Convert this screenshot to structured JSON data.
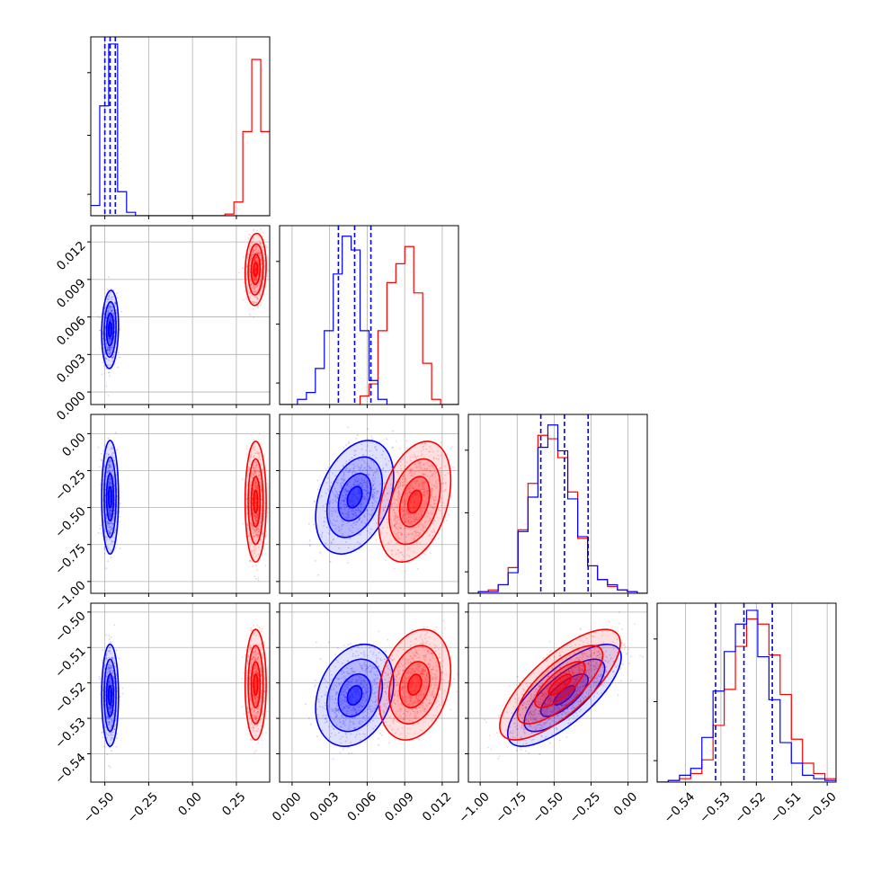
{
  "chart_data": {
    "type": "corner",
    "grid": true,
    "series": [
      {
        "name": "",
        "color": "#0000ff",
        "means": [
          -0.47,
          0.005,
          -0.43,
          -0.5235
        ],
        "sds": [
          0.02,
          0.0013,
          0.16,
          0.006
        ]
      },
      {
        "name": "",
        "color": "#ff0000",
        "means": [
          0.36,
          0.0098,
          -0.46,
          -0.5205
        ],
        "sds": [
          0.025,
          0.0012,
          0.17,
          0.0065
        ]
      }
    ],
    "params": [
      {
        "range": [
          -0.58,
          0.44
        ],
        "ticks": [
          -0.5,
          -0.25,
          0.0,
          0.25
        ],
        "tick_labels": [
          "−0.50",
          "−0.25",
          "0.00",
          "0.25"
        ]
      },
      {
        "range": [
          -0.001,
          0.0133
        ],
        "ticks": [
          0.0,
          0.003,
          0.006,
          0.009,
          0.012
        ],
        "tick_labels": [
          "0.000",
          "0.003",
          "0.006",
          "0.009",
          "0.012"
        ]
      },
      {
        "range": [
          -1.08,
          0.13
        ],
        "ticks": [
          -1.0,
          -0.75,
          -0.5,
          -0.25,
          0.0
        ],
        "tick_labels": [
          "−1.00",
          "−0.75",
          "−0.50",
          "−0.25",
          "0.00"
        ]
      },
      {
        "range": [
          -0.548,
          -0.4975
        ],
        "ticks": [
          -0.54,
          -0.53,
          -0.52,
          -0.51,
          -0.5
        ],
        "tick_labels": [
          "−0.54",
          "−0.53",
          "−0.52",
          "−0.51",
          "−0.50"
        ]
      }
    ],
    "diagonal_histograms": [
      {
        "blue": [
          0.06,
          0.64,
          1.0,
          0.14,
          0.02,
          0,
          0,
          0,
          0,
          0,
          0,
          0,
          0,
          0,
          0,
          0,
          0,
          0,
          0,
          0
        ],
        "red": [
          0,
          0,
          0,
          0,
          0,
          0,
          0,
          0,
          0,
          0,
          0,
          0,
          0,
          0,
          0,
          0.01,
          0.08,
          0.49,
          0.91,
          0.49
        ],
        "quantiles": [
          -0.5,
          -0.47,
          -0.44
        ]
      },
      {
        "blue": [
          0,
          0,
          0.03,
          0.07,
          0.21,
          0.43,
          0.76,
          0.98,
          0.9,
          0.43,
          0.14,
          0.03,
          0,
          0,
          0,
          0,
          0,
          0,
          0,
          0
        ],
        "red": [
          0,
          0,
          0,
          0,
          0,
          0,
          0,
          0,
          0,
          0.05,
          0.12,
          0.43,
          0.71,
          0.82,
          0.92,
          0.65,
          0.24,
          0.03,
          0,
          0
        ],
        "quantiles": [
          0.0037,
          0.005,
          0.0063
        ]
      },
      {
        "blue": [
          0,
          0.01,
          0.01,
          0.05,
          0.12,
          0.36,
          0.56,
          0.85,
          0.98,
          0.83,
          0.55,
          0.33,
          0.16,
          0.08,
          0.05,
          0.02,
          0.01,
          0
        ],
        "red": [
          0,
          0.01,
          0.02,
          0.05,
          0.15,
          0.37,
          0.64,
          0.92,
          0.9,
          0.79,
          0.59,
          0.32,
          0.16,
          0.08,
          0.04,
          0.02,
          0.01,
          0
        ],
        "quantiles": [
          -0.59,
          -0.43,
          -0.27
        ]
      },
      {
        "blue": [
          0,
          0.01,
          0.04,
          0.08,
          0.26,
          0.53,
          0.76,
          0.92,
          1.0,
          0.73,
          0.48,
          0.23,
          0.11,
          0.04,
          0.02,
          0.01
        ],
        "red": [
          0,
          0.01,
          0.02,
          0.05,
          0.13,
          0.33,
          0.54,
          0.79,
          0.95,
          0.92,
          0.74,
          0.51,
          0.25,
          0.11,
          0.05,
          0.02
        ],
        "quantiles": [
          -0.5315,
          -0.5235,
          -0.5155
        ]
      }
    ]
  }
}
